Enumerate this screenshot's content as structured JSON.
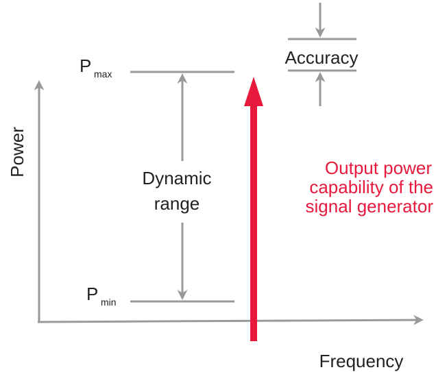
{
  "axes": {
    "y_label": "Power",
    "x_label": "Frequency"
  },
  "levels": [
    {
      "symbol": "P",
      "subscript": "max"
    },
    {
      "symbol": "P",
      "subscript": "min"
    }
  ],
  "dynamic_range": [
    "Dynamic",
    "range"
  ],
  "accuracy": "Accuracy",
  "output_label": [
    "Output power",
    "capability of the",
    "signal generator"
  ]
}
